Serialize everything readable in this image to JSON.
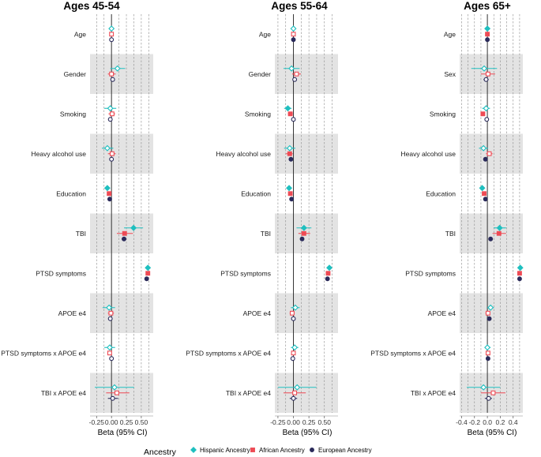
{
  "chart_data": {
    "type": "forest",
    "legend": {
      "title": "Ancestry",
      "position": "bottom",
      "items": [
        {
          "name": "Hispanic Ancestry",
          "color": "#1fbfbf"
        },
        {
          "name": "African Ancestry",
          "color": "#ee4b55"
        },
        {
          "name": "European Ancestry",
          "color": "#2a2a5a"
        }
      ]
    },
    "series_keys": [
      "hispanic",
      "african",
      "european"
    ],
    "series_colors": {
      "hispanic": "#1fbfbf",
      "african": "#ee4b55",
      "european": "#2a2a5a"
    },
    "panels": [
      {
        "title": "Ages 45-54",
        "xlabel": "Beta (95% CI)",
        "xlim": [
          -0.36,
          0.7
        ],
        "ticks": [
          -0.25,
          0,
          0.25,
          0.5
        ],
        "tick_labels": [
          "-0.25",
          "0.00",
          "0.25",
          "0.50"
        ],
        "gridlines": [
          -0.25,
          -0.125,
          0,
          0.125,
          0.25,
          0.375,
          0.5,
          0.625
        ],
        "rows": [
          {
            "label": "Age",
            "shaded": false,
            "hispanic": {
              "est": 0.0,
              "lo": -0.01,
              "hi": 0.01,
              "sig": false
            },
            "african": {
              "est": 0.0,
              "lo": -0.01,
              "hi": 0.01,
              "sig": false
            },
            "european": {
              "est": 0.0,
              "lo": -0.01,
              "hi": 0.01,
              "sig": false
            }
          },
          {
            "label": "Gender",
            "shaded": true,
            "hispanic": {
              "est": 0.1,
              "lo": -0.02,
              "hi": 0.23,
              "sig": false
            },
            "african": {
              "est": 0.0,
              "lo": -0.06,
              "hi": 0.07,
              "sig": false
            },
            "european": {
              "est": 0.02,
              "lo": -0.01,
              "hi": 0.05,
              "sig": false
            }
          },
          {
            "label": "Smoking",
            "shaded": false,
            "hispanic": {
              "est": -0.02,
              "lo": -0.12,
              "hi": 0.08,
              "sig": false
            },
            "african": {
              "est": 0.01,
              "lo": -0.05,
              "hi": 0.06,
              "sig": false
            },
            "european": {
              "est": -0.02,
              "lo": -0.05,
              "hi": 0.01,
              "sig": false
            }
          },
          {
            "label": "Heavy alcohol use",
            "shaded": true,
            "hispanic": {
              "est": -0.07,
              "lo": -0.16,
              "hi": 0.03,
              "sig": false
            },
            "african": {
              "est": 0.01,
              "lo": -0.06,
              "hi": 0.07,
              "sig": false
            },
            "european": {
              "est": 0.0,
              "lo": -0.03,
              "hi": 0.03,
              "sig": false
            }
          },
          {
            "label": "Education",
            "shaded": false,
            "hispanic": {
              "est": -0.07,
              "lo": -0.09,
              "hi": -0.05,
              "sig": true
            },
            "african": {
              "est": -0.04,
              "lo": -0.06,
              "hi": -0.02,
              "sig": true
            },
            "european": {
              "est": -0.03,
              "lo": -0.04,
              "hi": -0.02,
              "sig": true
            }
          },
          {
            "label": "TBI",
            "shaded": true,
            "hispanic": {
              "est": 0.37,
              "lo": 0.21,
              "hi": 0.53,
              "sig": true
            },
            "african": {
              "est": 0.22,
              "lo": 0.09,
              "hi": 0.36,
              "sig": true
            },
            "european": {
              "est": 0.21,
              "lo": 0.17,
              "hi": 0.25,
              "sig": true
            }
          },
          {
            "label": "PTSD symptoms",
            "shaded": false,
            "hispanic": {
              "est": 0.61,
              "lo": 0.58,
              "hi": 0.64,
              "sig": true
            },
            "african": {
              "est": 0.61,
              "lo": 0.59,
              "hi": 0.63,
              "sig": true
            },
            "european": {
              "est": 0.59,
              "lo": 0.58,
              "hi": 0.6,
              "sig": true
            }
          },
          {
            "label": "APOE e4",
            "shaded": true,
            "hispanic": {
              "est": -0.04,
              "lo": -0.15,
              "hi": 0.06,
              "sig": false
            },
            "african": {
              "est": -0.01,
              "lo": -0.06,
              "hi": 0.04,
              "sig": false
            },
            "european": {
              "est": -0.02,
              "lo": -0.04,
              "hi": 0.01,
              "sig": false
            }
          },
          {
            "label": "PTSD symptoms x APOE e4",
            "shaded": false,
            "hispanic": {
              "est": -0.03,
              "lo": -0.12,
              "hi": 0.06,
              "sig": false
            },
            "african": {
              "est": -0.03,
              "lo": -0.07,
              "hi": 0.0,
              "sig": false
            },
            "european": {
              "est": 0.0,
              "lo": -0.02,
              "hi": 0.02,
              "sig": false
            }
          },
          {
            "label": "TBI x APOE e4",
            "shaded": true,
            "hispanic": {
              "est": 0.05,
              "lo": -0.28,
              "hi": 0.38,
              "sig": false
            },
            "african": {
              "est": 0.09,
              "lo": -0.09,
              "hi": 0.3,
              "sig": false
            },
            "european": {
              "est": 0.02,
              "lo": -0.06,
              "hi": 0.11,
              "sig": false
            }
          }
        ]
      },
      {
        "title": "Ages 55-64",
        "xlabel": "Beta (95% CI)",
        "xlim": [
          -0.3,
          0.72
        ],
        "ticks": [
          -0.25,
          0,
          0.25,
          0.5
        ],
        "tick_labels": [
          "-0.25",
          "0.00",
          "0.25",
          "0.50"
        ],
        "gridlines": [
          -0.25,
          -0.125,
          0,
          0.125,
          0.25,
          0.375,
          0.5,
          0.625
        ],
        "rows": [
          {
            "label": "Age",
            "shaded": false,
            "hispanic": {
              "est": 0.0,
              "lo": -0.01,
              "hi": 0.01,
              "sig": false
            },
            "african": {
              "est": 0.0,
              "lo": -0.01,
              "hi": 0.01,
              "sig": false
            },
            "european": {
              "est": 0.0,
              "lo": -0.01,
              "hi": 0.01,
              "sig": true
            }
          },
          {
            "label": "Gender",
            "shaded": true,
            "hispanic": {
              "est": -0.03,
              "lo": -0.16,
              "hi": 0.1,
              "sig": false
            },
            "african": {
              "est": 0.05,
              "lo": -0.02,
              "hi": 0.12,
              "sig": false
            },
            "european": {
              "est": 0.02,
              "lo": -0.01,
              "hi": 0.05,
              "sig": false
            }
          },
          {
            "label": "Smoking",
            "shaded": false,
            "hispanic": {
              "est": -0.09,
              "lo": -0.15,
              "hi": -0.03,
              "sig": true
            },
            "african": {
              "est": -0.05,
              "lo": -0.09,
              "hi": -0.01,
              "sig": true
            },
            "european": {
              "est": 0.0,
              "lo": -0.01,
              "hi": 0.02,
              "sig": false
            }
          },
          {
            "label": "Heavy alcohol use",
            "shaded": true,
            "hispanic": {
              "est": -0.06,
              "lo": -0.15,
              "hi": 0.03,
              "sig": false
            },
            "african": {
              "est": -0.06,
              "lo": -0.12,
              "hi": -0.01,
              "sig": true
            },
            "european": {
              "est": -0.04,
              "lo": -0.06,
              "hi": -0.02,
              "sig": true
            }
          },
          {
            "label": "Education",
            "shaded": false,
            "hispanic": {
              "est": -0.07,
              "lo": -0.09,
              "hi": -0.05,
              "sig": true
            },
            "african": {
              "est": -0.05,
              "lo": -0.07,
              "hi": -0.03,
              "sig": true
            },
            "european": {
              "est": -0.03,
              "lo": -0.04,
              "hi": -0.02,
              "sig": true
            }
          },
          {
            "label": "TBI",
            "shaded": true,
            "hispanic": {
              "est": 0.17,
              "lo": 0.05,
              "hi": 0.29,
              "sig": true
            },
            "african": {
              "est": 0.17,
              "lo": 0.08,
              "hi": 0.27,
              "sig": true
            },
            "european": {
              "est": 0.14,
              "lo": 0.11,
              "hi": 0.17,
              "sig": true
            }
          },
          {
            "label": "PTSD symptoms",
            "shaded": false,
            "hispanic": {
              "est": 0.58,
              "lo": 0.56,
              "hi": 0.6,
              "sig": true
            },
            "african": {
              "est": 0.56,
              "lo": 0.54,
              "hi": 0.58,
              "sig": true
            },
            "european": {
              "est": 0.55,
              "lo": 0.54,
              "hi": 0.56,
              "sig": true
            }
          },
          {
            "label": "APOE e4",
            "shaded": true,
            "hispanic": {
              "est": 0.03,
              "lo": -0.04,
              "hi": 0.1,
              "sig": false
            },
            "african": {
              "est": -0.02,
              "lo": -0.06,
              "hi": 0.02,
              "sig": false
            },
            "european": {
              "est": 0.0,
              "lo": -0.02,
              "hi": 0.02,
              "sig": false
            }
          },
          {
            "label": "PTSD symptoms x APOE e4",
            "shaded": false,
            "hispanic": {
              "est": 0.02,
              "lo": -0.04,
              "hi": 0.08,
              "sig": false
            },
            "african": {
              "est": 0.0,
              "lo": -0.03,
              "hi": 0.03,
              "sig": false
            },
            "european": {
              "est": -0.01,
              "lo": -0.02,
              "hi": 0.01,
              "sig": false
            }
          },
          {
            "label": "TBI x APOE e4",
            "shaded": true,
            "hispanic": {
              "est": 0.06,
              "lo": -0.25,
              "hi": 0.37,
              "sig": false
            },
            "african": {
              "est": 0.02,
              "lo": -0.16,
              "hi": 0.2,
              "sig": false
            },
            "european": {
              "est": 0.0,
              "lo": -0.06,
              "hi": 0.06,
              "sig": false
            }
          }
        ]
      },
      {
        "title": "Ages 65+",
        "xlabel": "Beta (95% CI)",
        "xlim": [
          -0.43,
          0.55
        ],
        "ticks": [
          -0.4,
          -0.2,
          0,
          0.2,
          0.4
        ],
        "tick_labels": [
          "-0.4",
          "-0.2",
          "0.0",
          "0.2",
          "0.4"
        ],
        "gridlines": [
          -0.4,
          -0.3,
          -0.2,
          -0.1,
          0,
          0.1,
          0.2,
          0.3,
          0.4,
          0.5
        ],
        "rows": [
          {
            "label": "Age",
            "shaded": false,
            "hispanic": {
              "est": 0.0,
              "lo": -0.01,
              "hi": 0.01,
              "sig": true
            },
            "african": {
              "est": 0.0,
              "lo": -0.01,
              "hi": 0.01,
              "sig": true
            },
            "european": {
              "est": 0.0,
              "lo": -0.01,
              "hi": 0.01,
              "sig": true
            }
          },
          {
            "label": "Sex",
            "shaded": true,
            "hispanic": {
              "est": -0.05,
              "lo": -0.25,
              "hi": 0.15,
              "sig": false
            },
            "african": {
              "est": 0.01,
              "lo": -0.1,
              "hi": 0.12,
              "sig": false
            },
            "european": {
              "est": -0.02,
              "lo": -0.06,
              "hi": 0.02,
              "sig": false
            }
          },
          {
            "label": "Smoking",
            "shaded": false,
            "hispanic": {
              "est": -0.02,
              "lo": -0.08,
              "hi": 0.04,
              "sig": false
            },
            "african": {
              "est": -0.07,
              "lo": -0.1,
              "hi": -0.04,
              "sig": true
            },
            "european": {
              "est": -0.01,
              "lo": -0.02,
              "hi": 0.01,
              "sig": false
            }
          },
          {
            "label": "Heavy alcohol use",
            "shaded": true,
            "hispanic": {
              "est": -0.06,
              "lo": -0.13,
              "hi": 0.01,
              "sig": false
            },
            "african": {
              "est": 0.03,
              "lo": -0.02,
              "hi": 0.08,
              "sig": false
            },
            "european": {
              "est": -0.03,
              "lo": -0.05,
              "hi": -0.01,
              "sig": true
            }
          },
          {
            "label": "Education",
            "shaded": false,
            "hispanic": {
              "est": -0.08,
              "lo": -0.1,
              "hi": -0.06,
              "sig": true
            },
            "african": {
              "est": -0.05,
              "lo": -0.07,
              "hi": -0.03,
              "sig": true
            },
            "european": {
              "est": -0.03,
              "lo": -0.04,
              "hi": -0.02,
              "sig": true
            }
          },
          {
            "label": "TBI",
            "shaded": true,
            "hispanic": {
              "est": 0.19,
              "lo": 0.1,
              "hi": 0.29,
              "sig": true
            },
            "african": {
              "est": 0.18,
              "lo": 0.08,
              "hi": 0.29,
              "sig": true
            },
            "european": {
              "est": 0.05,
              "lo": 0.03,
              "hi": 0.07,
              "sig": true
            }
          },
          {
            "label": "PTSD symptoms",
            "shaded": false,
            "hispanic": {
              "est": 0.51,
              "lo": 0.49,
              "hi": 0.53,
              "sig": true
            },
            "african": {
              "est": 0.5,
              "lo": 0.48,
              "hi": 0.52,
              "sig": true
            },
            "european": {
              "est": 0.5,
              "lo": 0.49,
              "hi": 0.51,
              "sig": true
            }
          },
          {
            "label": "APOE e4",
            "shaded": true,
            "hispanic": {
              "est": 0.05,
              "lo": 0.0,
              "hi": 0.1,
              "sig": false
            },
            "african": {
              "est": 0.01,
              "lo": -0.03,
              "hi": 0.04,
              "sig": false
            },
            "european": {
              "est": 0.03,
              "lo": 0.01,
              "hi": 0.04,
              "sig": true
            }
          },
          {
            "label": "PTSD symptoms x APOE e4",
            "shaded": false,
            "hispanic": {
              "est": 0.0,
              "lo": -0.04,
              "hi": 0.05,
              "sig": false
            },
            "african": {
              "est": 0.01,
              "lo": -0.02,
              "hi": 0.04,
              "sig": false
            },
            "european": {
              "est": 0.01,
              "lo": -0.01,
              "hi": 0.02,
              "sig": true
            }
          },
          {
            "label": "TBI x APOE e4",
            "shaded": true,
            "hispanic": {
              "est": -0.06,
              "lo": -0.32,
              "hi": 0.2,
              "sig": false
            },
            "african": {
              "est": 0.09,
              "lo": -0.1,
              "hi": 0.28,
              "sig": false
            },
            "european": {
              "est": 0.02,
              "lo": -0.04,
              "hi": 0.07,
              "sig": false
            }
          }
        ]
      }
    ]
  }
}
